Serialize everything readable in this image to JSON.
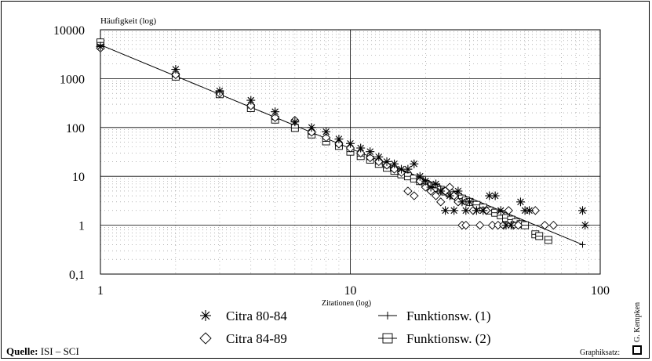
{
  "chart_data": {
    "type": "scatter",
    "ylabel": "Häufigkeit (log)",
    "xlabel": "Zitationen (log)",
    "x_scale": "log",
    "y_scale": "log",
    "xlim": [
      1,
      100
    ],
    "ylim": [
      0.1,
      10000
    ],
    "x_ticks": [
      "1",
      "10",
      "100"
    ],
    "y_ticks": [
      "10000",
      "1000",
      "100",
      "10",
      "1",
      "0,1"
    ],
    "grid": true,
    "legend_position": "bottom",
    "series": [
      {
        "name": "Citra 80-84",
        "marker": "asterisk",
        "points": [
          [
            1,
            4500
          ],
          [
            2,
            1550
          ],
          [
            3,
            560
          ],
          [
            4,
            360
          ],
          [
            5,
            210
          ],
          [
            6,
            130
          ],
          [
            7,
            100
          ],
          [
            8,
            82
          ],
          [
            9,
            58
          ],
          [
            10,
            47
          ],
          [
            11,
            38
          ],
          [
            12,
            32
          ],
          [
            13,
            25
          ],
          [
            14,
            20
          ],
          [
            15,
            18
          ],
          [
            16,
            14
          ],
          [
            17,
            14
          ],
          [
            18,
            18
          ],
          [
            19,
            10
          ],
          [
            20,
            8
          ],
          [
            21,
            6
          ],
          [
            22,
            7
          ],
          [
            23,
            5
          ],
          [
            24,
            2
          ],
          [
            25,
            4
          ],
          [
            26,
            2
          ],
          [
            27,
            5
          ],
          [
            28,
            3
          ],
          [
            29,
            2
          ],
          [
            30,
            3
          ],
          [
            32,
            2
          ],
          [
            34,
            2
          ],
          [
            36,
            4
          ],
          [
            38,
            4
          ],
          [
            40,
            2
          ],
          [
            42,
            1
          ],
          [
            44,
            1
          ],
          [
            48,
            3
          ],
          [
            50,
            2
          ],
          [
            52,
            2
          ],
          [
            85,
            2
          ],
          [
            87,
            1
          ]
        ]
      },
      {
        "name": "Citra 84-89",
        "marker": "diamond",
        "points": [
          [
            1,
            4200
          ],
          [
            2,
            1200
          ],
          [
            3,
            500
          ],
          [
            4,
            280
          ],
          [
            5,
            160
          ],
          [
            6,
            140
          ],
          [
            7,
            80
          ],
          [
            8,
            62
          ],
          [
            9,
            46
          ],
          [
            10,
            38
          ],
          [
            11,
            30
          ],
          [
            12,
            24
          ],
          [
            13,
            20
          ],
          [
            14,
            17
          ],
          [
            15,
            14
          ],
          [
            16,
            12
          ],
          [
            17,
            5
          ],
          [
            18,
            4
          ],
          [
            19,
            8
          ],
          [
            20,
            6
          ],
          [
            21,
            5
          ],
          [
            22,
            4
          ],
          [
            23,
            3
          ],
          [
            24,
            5
          ],
          [
            25,
            6
          ],
          [
            26,
            4
          ],
          [
            27,
            3
          ],
          [
            28,
            1
          ],
          [
            29,
            1
          ],
          [
            31,
            2
          ],
          [
            33,
            1
          ],
          [
            35,
            2
          ],
          [
            37,
            1
          ],
          [
            39,
            1
          ],
          [
            41,
            1
          ],
          [
            43,
            2
          ],
          [
            45,
            1
          ],
          [
            47,
            1
          ],
          [
            55,
            2
          ],
          [
            60,
            1
          ],
          [
            65,
            1
          ]
        ]
      },
      {
        "name": "Funktionsw. (1)",
        "marker": "line",
        "points": [
          [
            1,
            4900
          ],
          [
            85,
            0.4
          ]
        ]
      },
      {
        "name": "Funktionsw. (2)",
        "marker": "square",
        "points": [
          [
            1,
            5500
          ],
          [
            2,
            1100
          ],
          [
            3,
            480
          ],
          [
            4,
            250
          ],
          [
            5,
            145
          ],
          [
            6,
            98
          ],
          [
            7,
            72
          ],
          [
            8,
            52
          ],
          [
            9,
            42
          ],
          [
            10,
            32
          ],
          [
            11,
            26
          ],
          [
            12,
            22
          ],
          [
            13,
            18
          ],
          [
            14,
            15
          ],
          [
            15,
            13
          ],
          [
            16,
            11
          ],
          [
            17,
            10
          ],
          [
            18,
            9
          ],
          [
            19,
            8
          ],
          [
            20,
            7
          ],
          [
            21,
            6.3
          ],
          [
            22,
            5.8
          ],
          [
            23,
            5.3
          ],
          [
            24,
            4.9
          ],
          [
            25,
            4.5
          ],
          [
            26,
            4.1
          ],
          [
            27,
            3.8
          ],
          [
            28,
            3.5
          ],
          [
            29,
            3.2
          ],
          [
            30,
            3
          ],
          [
            32,
            2.6
          ],
          [
            34,
            2.3
          ],
          [
            36,
            2
          ],
          [
            38,
            1.8
          ],
          [
            40,
            1.6
          ],
          [
            42,
            1.4
          ],
          [
            44,
            1.3
          ],
          [
            46,
            1.15
          ],
          [
            48,
            1.05
          ],
          [
            50,
            1
          ],
          [
            55,
            0.65
          ],
          [
            57,
            0.6
          ],
          [
            62,
            0.5
          ]
        ]
      }
    ]
  },
  "footer": {
    "source_label": "Quelle:",
    "source_value": " ISI – SCI",
    "graphik_label": "Graphiksatz:",
    "author": "G. Kempken"
  }
}
